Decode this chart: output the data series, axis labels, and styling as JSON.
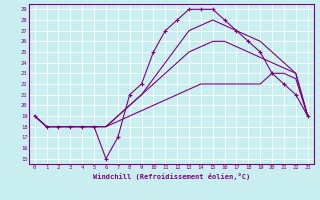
{
  "xlabel": "Windchill (Refroidissement éolien,°C)",
  "bg_color": "#c8eef0",
  "grid_color": "#ffffff",
  "line_color": "#800080",
  "border_color": "#800080",
  "xlim": [
    -0.5,
    23.5
  ],
  "ylim": [
    14.5,
    29.5
  ],
  "xticks": [
    0,
    1,
    2,
    3,
    4,
    5,
    6,
    7,
    8,
    9,
    10,
    11,
    12,
    13,
    14,
    15,
    16,
    17,
    18,
    19,
    20,
    21,
    22,
    23
  ],
  "yticks": [
    15,
    16,
    17,
    18,
    19,
    20,
    21,
    22,
    23,
    24,
    25,
    26,
    27,
    28,
    29
  ],
  "series": [
    {
      "x": [
        0,
        1,
        2,
        3,
        4,
        5,
        6,
        7,
        8,
        9,
        10,
        11,
        12,
        13,
        14,
        15,
        16,
        17,
        18,
        19,
        20,
        21,
        22,
        23
      ],
      "y": [
        19,
        18,
        18,
        18,
        18,
        18,
        15,
        17,
        21,
        22,
        25,
        27,
        28,
        29,
        29,
        29,
        28,
        27,
        26,
        25,
        23,
        22,
        21,
        19
      ],
      "marker": true
    },
    {
      "x": [
        0,
        1,
        2,
        3,
        4,
        5,
        6,
        7,
        8,
        9,
        10,
        11,
        12,
        13,
        14,
        15,
        16,
        17,
        18,
        19,
        20,
        21,
        22,
        23
      ],
      "y": [
        19,
        18,
        18,
        18,
        18,
        18,
        18,
        18.5,
        19,
        19.5,
        20,
        20.5,
        21,
        21.5,
        22,
        22,
        22,
        22,
        22,
        22,
        23,
        23,
        22.5,
        19
      ],
      "marker": false
    },
    {
      "x": [
        0,
        1,
        2,
        3,
        4,
        5,
        6,
        7,
        8,
        9,
        10,
        11,
        12,
        13,
        14,
        15,
        16,
        17,
        18,
        19,
        20,
        21,
        22,
        23
      ],
      "y": [
        19,
        18,
        18,
        18,
        18,
        18,
        18,
        19,
        20,
        21,
        22,
        23,
        24,
        25,
        25.5,
        26,
        26,
        25.5,
        25,
        24.5,
        24,
        23.5,
        23,
        19
      ],
      "marker": false
    },
    {
      "x": [
        0,
        1,
        2,
        3,
        4,
        5,
        6,
        7,
        8,
        9,
        10,
        11,
        12,
        13,
        14,
        15,
        16,
        17,
        18,
        19,
        20,
        21,
        22,
        23
      ],
      "y": [
        19,
        18,
        18,
        18,
        18,
        18,
        18,
        19,
        20,
        21,
        22.5,
        24,
        25.5,
        27,
        27.5,
        28,
        27.5,
        27,
        26.5,
        26,
        25,
        24,
        23,
        19
      ],
      "marker": false
    }
  ]
}
